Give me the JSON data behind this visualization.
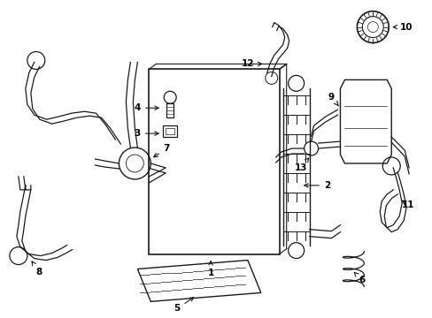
{
  "bg_color": "#ffffff",
  "line_color": "#1a1a1a",
  "label_color": "#000000",
  "fig_width": 4.89,
  "fig_height": 3.6,
  "dpi": 100,
  "lw": 0.9
}
